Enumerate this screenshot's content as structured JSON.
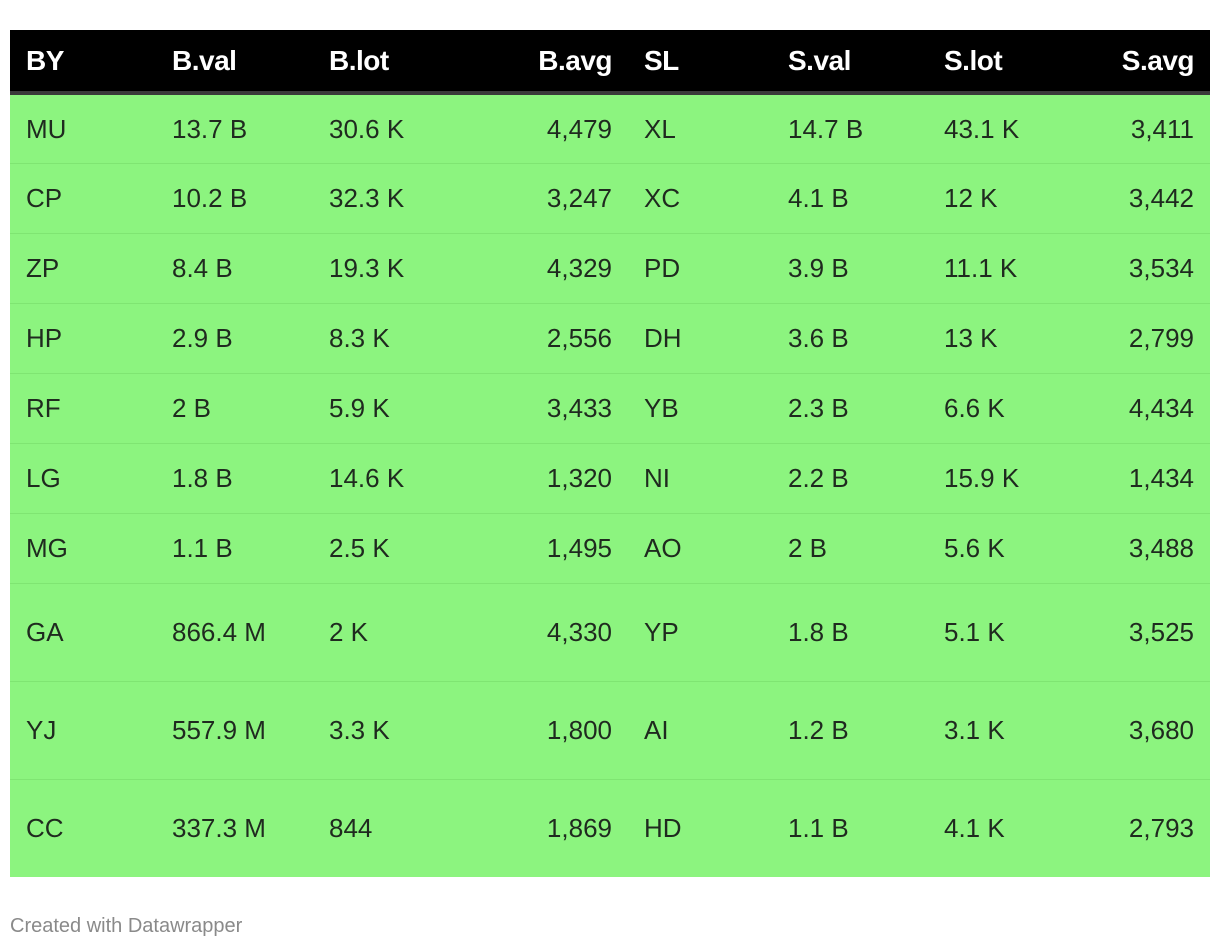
{
  "chart_data": {
    "type": "table",
    "columns": [
      "BY",
      "B.val",
      "B.lot",
      "B.avg",
      "SL",
      "S.val",
      "S.lot",
      "S.avg"
    ],
    "numeric_columns": [
      false,
      false,
      false,
      true,
      false,
      false,
      false,
      true
    ],
    "rows": [
      [
        "MU",
        "13.7 B",
        "30.6 K",
        "4,479",
        "XL",
        "14.7 B",
        "43.1 K",
        "3,411"
      ],
      [
        "CP",
        "10.2 B",
        "32.3 K",
        "3,247",
        "XC",
        "4.1 B",
        "12 K",
        "3,442"
      ],
      [
        "ZP",
        "8.4 B",
        "19.3 K",
        "4,329",
        "PD",
        "3.9 B",
        "11.1 K",
        "3,534"
      ],
      [
        "HP",
        "2.9 B",
        "8.3 K",
        "2,556",
        "DH",
        "3.6 B",
        "13 K",
        "2,799"
      ],
      [
        "RF",
        "2 B",
        "5.9 K",
        "3,433",
        "YB",
        "2.3 B",
        "6.6 K",
        "4,434"
      ],
      [
        "LG",
        "1.8 B",
        "14.6 K",
        "1,320",
        "NI",
        "2.2 B",
        "15.9 K",
        "1,434"
      ],
      [
        "MG",
        "1.1 B",
        "2.5 K",
        "1,495",
        "AO",
        "2 B",
        "5.6 K",
        "3,488"
      ],
      [
        "GA",
        "866.4 M",
        "2 K",
        "4,330",
        "YP",
        "1.8 B",
        "5.1 K",
        "3,525"
      ],
      [
        "YJ",
        "557.9 M",
        "3.3 K",
        "1,800",
        "AI",
        "1.2 B",
        "3.1 K",
        "3,680"
      ],
      [
        "CC",
        "337.3 M",
        "844",
        "1,869",
        "HD",
        "1.1 B",
        "4.1 K",
        "2,793"
      ]
    ],
    "header_background": "#000000",
    "header_text_color": "#ffffff",
    "row_background": "#8cf47f"
  },
  "footer": {
    "credit": "Created with Datawrapper"
  }
}
